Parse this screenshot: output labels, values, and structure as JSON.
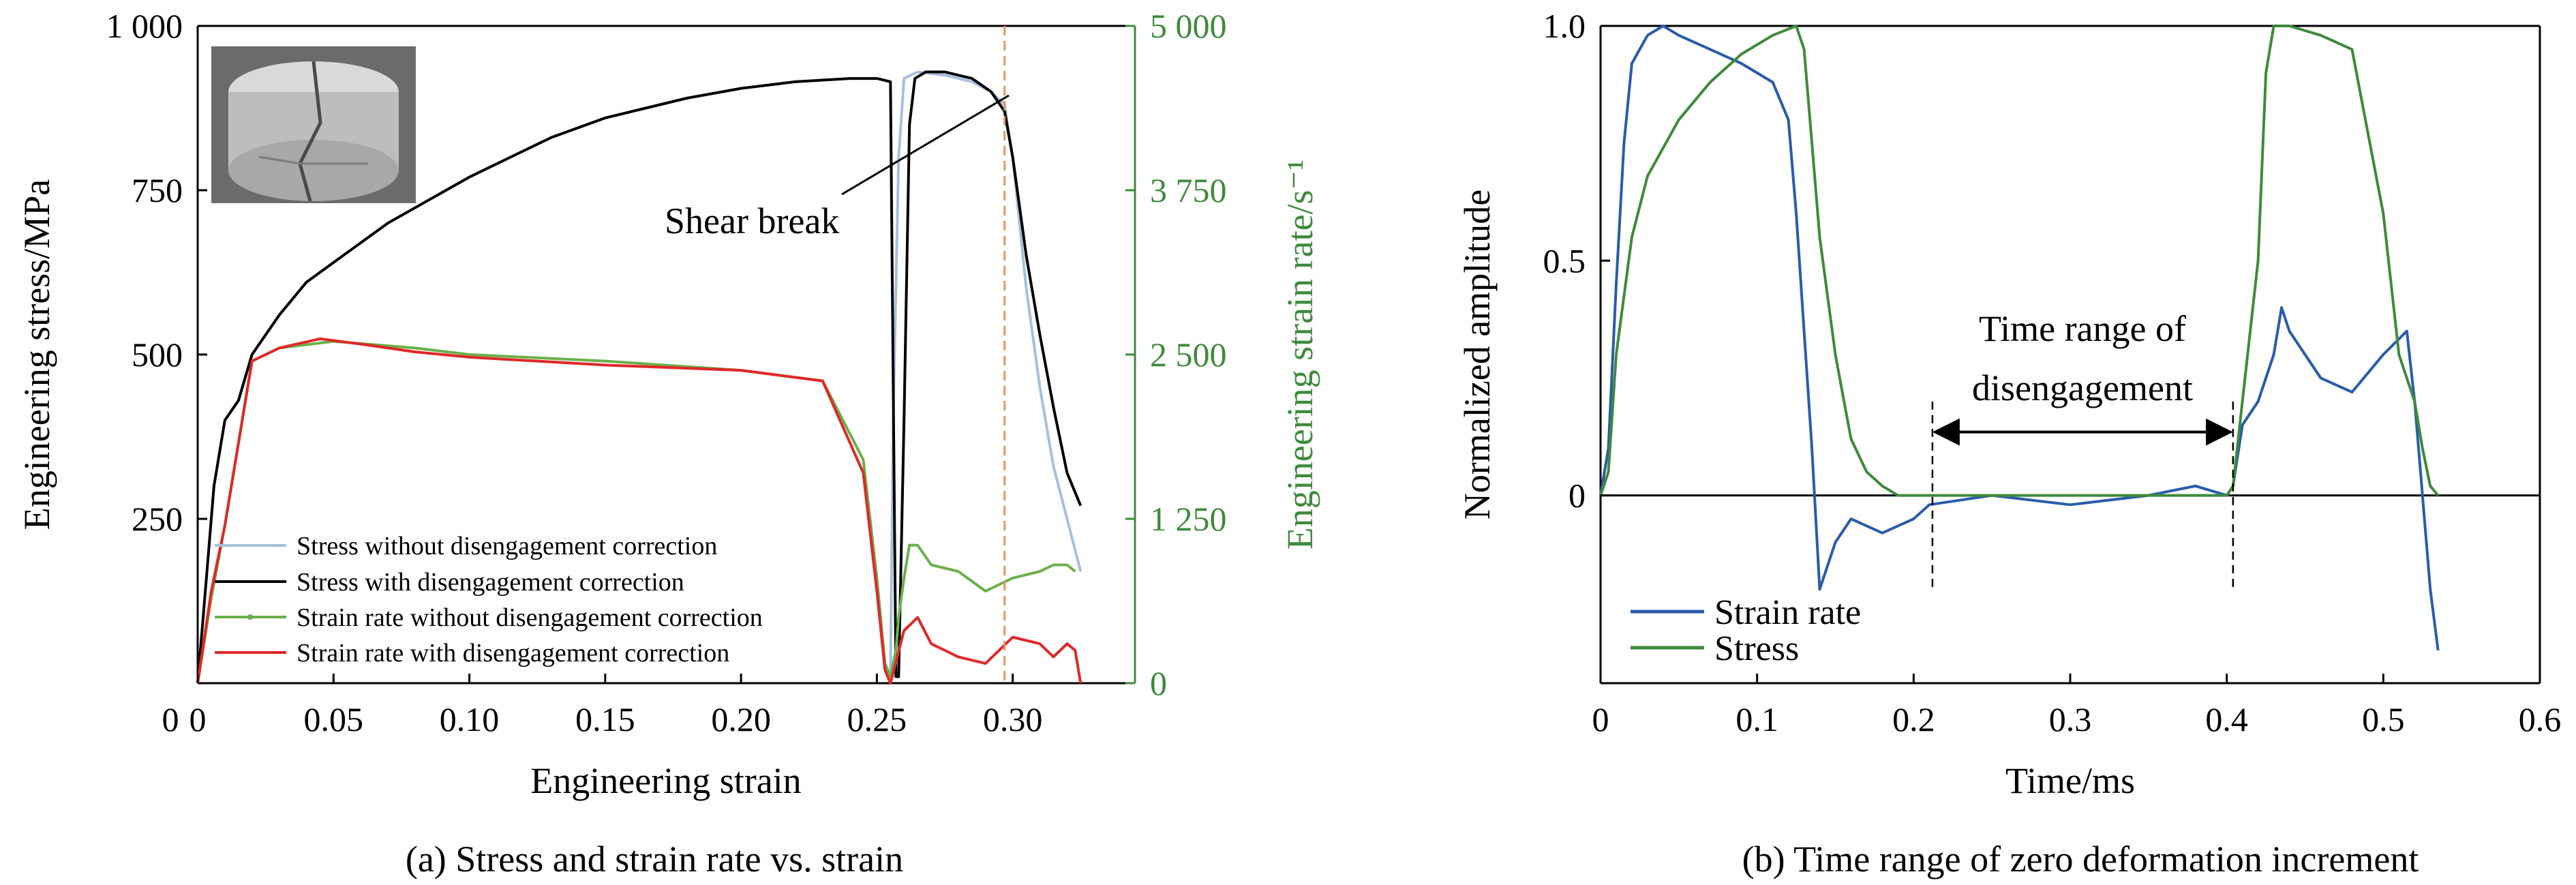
{
  "chart_data": [
    {
      "type": "line",
      "caption": "(a) Stress and strain rate vs. strain",
      "xlabel": "Engineering strain",
      "ylabel": "Engineering stress/MPa",
      "y2label": "Engineering strain rate/s⁻¹",
      "xlim": [
        0,
        0.345
      ],
      "ylim": [
        0,
        1000
      ],
      "y2lim": [
        0,
        5000
      ],
      "xticks": [
        "0",
        "0.05",
        "0.10",
        "0.15",
        "0.20",
        "0.25",
        "0.30"
      ],
      "yticks": [
        "250",
        "500",
        "750",
        "1 000"
      ],
      "y2ticks": [
        "0",
        "1 250",
        "2 500",
        "3 750",
        "5 000"
      ],
      "annotation": "Shear break",
      "legend_position": "bottom-left",
      "dashed_vline_x": 0.297,
      "series": [
        {
          "name": "Stress without disengagement correction",
          "axis": "left",
          "color": "#a9bfdc",
          "x": [
            0.255,
            0.256,
            0.258,
            0.26,
            0.265,
            0.275,
            0.285,
            0.292,
            0.297,
            0.3,
            0.305,
            0.31,
            0.315,
            0.32,
            0.325
          ],
          "y": [
            10,
            400,
            800,
            920,
            930,
            925,
            915,
            900,
            880,
            800,
            600,
            450,
            330,
            250,
            170
          ]
        },
        {
          "name": "Stress with disengagement correction",
          "axis": "left",
          "color": "#000000",
          "x": [
            0,
            0.003,
            0.006,
            0.01,
            0.015,
            0.02,
            0.03,
            0.04,
            0.05,
            0.07,
            0.1,
            0.13,
            0.15,
            0.18,
            0.2,
            0.22,
            0.24,
            0.25,
            0.255,
            0.257,
            0.258,
            0.26,
            0.262,
            0.264,
            0.268,
            0.275,
            0.285,
            0.292,
            0.297,
            0.3,
            0.305,
            0.31,
            0.315,
            0.32,
            0.325
          ],
          "y": [
            0,
            150,
            300,
            400,
            430,
            500,
            560,
            610,
            640,
            700,
            770,
            830,
            860,
            890,
            905,
            915,
            920,
            920,
            915,
            10,
            10,
            400,
            850,
            920,
            930,
            930,
            920,
            900,
            870,
            800,
            650,
            530,
            420,
            320,
            270
          ]
        },
        {
          "name": "Strain rate without disengagement correction",
          "axis": "right",
          "color": "#6bb04a",
          "x": [
            0,
            0.005,
            0.01,
            0.02,
            0.03,
            0.05,
            0.08,
            0.1,
            0.15,
            0.2,
            0.23,
            0.245,
            0.25,
            0.253,
            0.255,
            0.257,
            0.258,
            0.26,
            0.262,
            0.265,
            0.27,
            0.28,
            0.29,
            0.3,
            0.31,
            0.315,
            0.32,
            0.323
          ],
          "y": [
            0,
            650,
            1200,
            2450,
            2550,
            2600,
            2550,
            2500,
            2450,
            2380,
            2300,
            1700,
            800,
            150,
            50,
            250,
            500,
            800,
            1050,
            1050,
            900,
            850,
            700,
            800,
            850,
            900,
            900,
            850
          ]
        },
        {
          "name": "Strain rate with disengagement correction",
          "axis": "right",
          "color": "#e0282a",
          "x": [
            0,
            0.005,
            0.01,
            0.02,
            0.03,
            0.045,
            0.06,
            0.08,
            0.1,
            0.15,
            0.2,
            0.23,
            0.245,
            0.25,
            0.253,
            0.255,
            0.26,
            0.265,
            0.27,
            0.28,
            0.29,
            0.3,
            0.31,
            0.315,
            0.32,
            0.323,
            0.325
          ],
          "y": [
            0,
            700,
            1200,
            2450,
            2550,
            2620,
            2580,
            2520,
            2480,
            2420,
            2380,
            2300,
            1600,
            700,
            100,
            0,
            400,
            500,
            300,
            200,
            150,
            350,
            300,
            200,
            300,
            250,
            0
          ]
        }
      ]
    },
    {
      "type": "line",
      "caption": "(b) Time range of zero deformation increment",
      "xlabel": "Time/ms",
      "ylabel": "Normalized amplitude",
      "xlim": [
        0,
        0.6
      ],
      "ylim": [
        -0.4,
        1.0
      ],
      "xticks": [
        "0",
        "0.1",
        "0.2",
        "0.3",
        "0.4",
        "0.5",
        "0.6"
      ],
      "yticks": [
        "0",
        "0.5",
        "1.0"
      ],
      "legend_position": "bottom-left",
      "annotation": "Time range of disengagement",
      "annotation_range": [
        0.212,
        0.404
      ],
      "series": [
        {
          "name": "Strain rate",
          "color": "#2a5caa",
          "x": [
            0,
            0.005,
            0.01,
            0.015,
            0.02,
            0.03,
            0.04,
            0.05,
            0.07,
            0.09,
            0.11,
            0.12,
            0.125,
            0.13,
            0.135,
            0.14,
            0.15,
            0.16,
            0.18,
            0.2,
            0.21,
            0.25,
            0.3,
            0.35,
            0.38,
            0.4,
            0.404,
            0.41,
            0.42,
            0.43,
            0.435,
            0.44,
            0.46,
            0.48,
            0.5,
            0.515,
            0.52,
            0.525,
            0.53,
            0.535
          ],
          "y": [
            0,
            0.1,
            0.45,
            0.75,
            0.92,
            0.98,
            1.0,
            0.98,
            0.95,
            0.92,
            0.88,
            0.8,
            0.6,
            0.35,
            0.1,
            -0.2,
            -0.1,
            -0.05,
            -0.08,
            -0.05,
            -0.02,
            0.0,
            -0.02,
            0.0,
            0.02,
            0.0,
            0.02,
            0.15,
            0.2,
            0.3,
            0.4,
            0.35,
            0.25,
            0.22,
            0.3,
            0.35,
            0.2,
            0.0,
            -0.2,
            -0.33
          ]
        },
        {
          "name": "Stress",
          "color": "#3f8a3c",
          "x": [
            0,
            0.005,
            0.01,
            0.02,
            0.03,
            0.05,
            0.07,
            0.09,
            0.11,
            0.125,
            0.13,
            0.135,
            0.14,
            0.15,
            0.16,
            0.17,
            0.18,
            0.19,
            0.2,
            0.25,
            0.3,
            0.35,
            0.4,
            0.404,
            0.41,
            0.42,
            0.425,
            0.43,
            0.44,
            0.46,
            0.48,
            0.5,
            0.51,
            0.52,
            0.525,
            0.53,
            0.535
          ],
          "y": [
            0,
            0.05,
            0.3,
            0.55,
            0.68,
            0.8,
            0.88,
            0.94,
            0.98,
            1.0,
            0.95,
            0.75,
            0.55,
            0.3,
            0.12,
            0.05,
            0.02,
            0.0,
            0.0,
            0.0,
            0.0,
            0.0,
            0.0,
            0.02,
            0.2,
            0.5,
            0.9,
            1.0,
            1.0,
            0.98,
            0.95,
            0.6,
            0.3,
            0.2,
            0.1,
            0.02,
            0.0
          ]
        }
      ]
    }
  ]
}
